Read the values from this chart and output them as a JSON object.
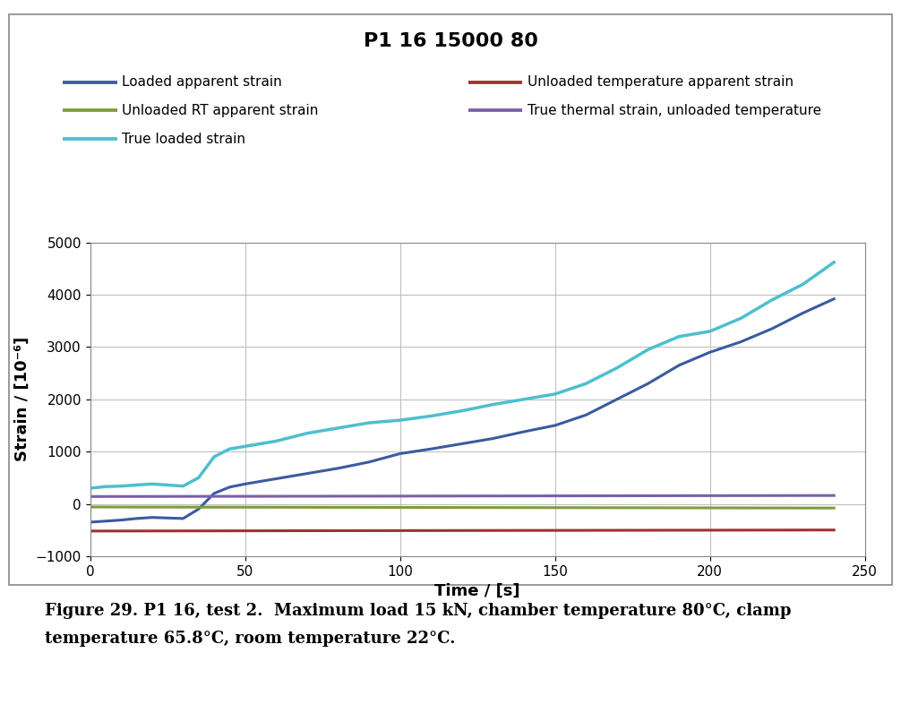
{
  "title": "P1 16 15000 80",
  "xlabel": "Time / [s]",
  "ylabel": "Strain / [10⁻⁶]",
  "xlim": [
    0,
    250
  ],
  "ylim": [
    -1000,
    5000
  ],
  "xticks": [
    0,
    50,
    100,
    150,
    200,
    250
  ],
  "yticks": [
    -1000,
    0,
    1000,
    2000,
    3000,
    4000,
    5000
  ],
  "caption_line1": "Figure 29. P1 16, test 2.  Maximum load 15 kN, chamber temperature 80°C, clamp",
  "caption_line2": "temperature 65.8°C, room temperature 22°C.",
  "loaded_apparent_strain": {
    "label": "Loaded apparent strain",
    "color": "#3A5BA0",
    "linewidth": 2.2,
    "x": [
      0,
      5,
      10,
      15,
      20,
      25,
      30,
      35,
      40,
      45,
      50,
      60,
      70,
      80,
      90,
      100,
      110,
      120,
      130,
      140,
      150,
      160,
      170,
      180,
      190,
      200,
      210,
      220,
      230,
      240
    ],
    "y": [
      -350,
      -330,
      -310,
      -280,
      -260,
      -270,
      -280,
      -100,
      200,
      320,
      380,
      480,
      580,
      680,
      800,
      960,
      1050,
      1150,
      1250,
      1380,
      1500,
      1700,
      2000,
      2300,
      2650,
      2900,
      3100,
      3350,
      3650,
      3920
    ]
  },
  "unloaded_temp_apparent_strain": {
    "label": "Unloaded temperature apparent strain",
    "color": "#A03030",
    "linewidth": 2.2,
    "x": [
      0,
      240
    ],
    "y": [
      -520,
      -500
    ]
  },
  "unloaded_rt_apparent_strain": {
    "label": "Unloaded RT apparent strain",
    "color": "#7B9E3A",
    "linewidth": 2.2,
    "x": [
      0,
      240
    ],
    "y": [
      -60,
      -80
    ]
  },
  "true_thermal_strain": {
    "label": "True thermal strain, unloaded temperature",
    "color": "#7B5EA7",
    "linewidth": 2.2,
    "x": [
      0,
      240
    ],
    "y": [
      140,
      160
    ]
  },
  "true_loaded_strain": {
    "label": "True loaded strain",
    "color": "#4DBFCE",
    "linewidth": 2.5,
    "x": [
      0,
      5,
      10,
      15,
      20,
      25,
      30,
      35,
      40,
      45,
      50,
      60,
      70,
      80,
      90,
      100,
      110,
      120,
      130,
      140,
      150,
      160,
      170,
      180,
      190,
      200,
      210,
      220,
      230,
      240
    ],
    "y": [
      300,
      330,
      340,
      360,
      380,
      360,
      340,
      500,
      900,
      1050,
      1100,
      1200,
      1350,
      1450,
      1550,
      1600,
      1680,
      1780,
      1900,
      2000,
      2100,
      2300,
      2600,
      2950,
      3200,
      3300,
      3550,
      3900,
      4200,
      4620
    ]
  },
  "background_color": "#FFFFFF",
  "plot_bg_color": "#FFFFFF",
  "grid_color": "#C0C0C0",
  "title_fontsize": 16,
  "axis_label_fontsize": 13,
  "tick_fontsize": 11,
  "legend_fontsize": 11,
  "caption_fontsize": 13
}
